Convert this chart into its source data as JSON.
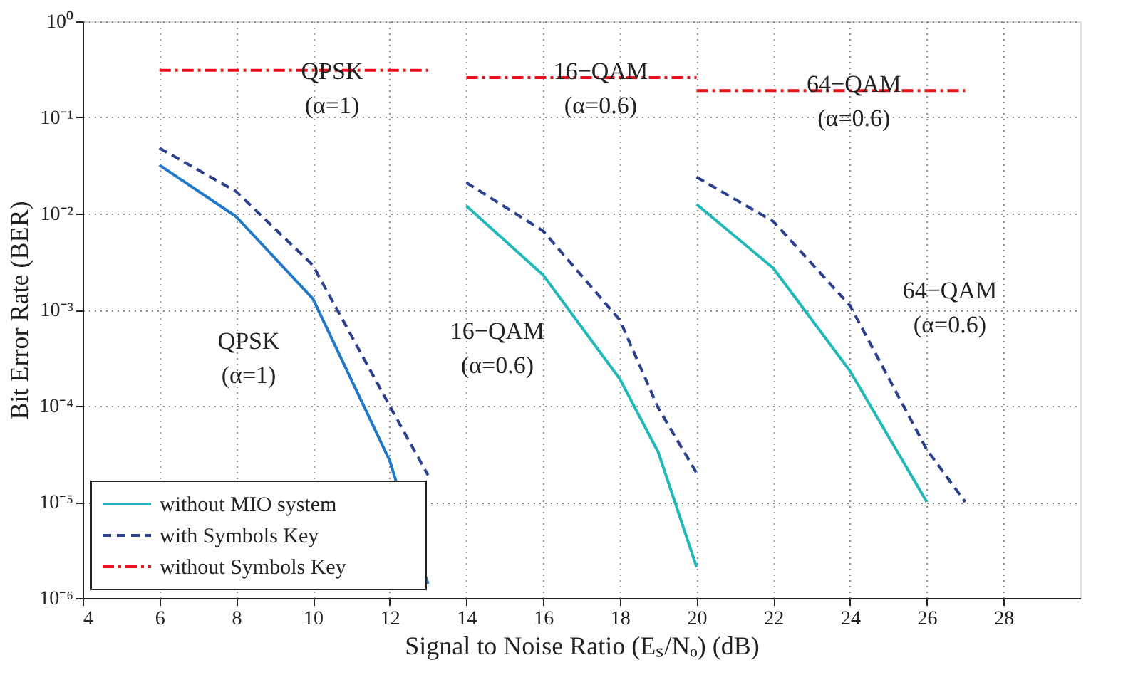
{
  "chart_data": {
    "type": "line",
    "xlabel": "Signal to Noise Ratio  (Eₛ/Nₒ)   (dB)",
    "ylabel": "Bit Error Rate   (BER)",
    "xlim": [
      4,
      30
    ],
    "xticks": [
      4,
      6,
      8,
      10,
      12,
      14,
      16,
      18,
      20,
      22,
      24,
      26,
      28
    ],
    "ylim": [
      1e-06,
      1
    ],
    "yticks": [
      {
        "value": 1,
        "label": "10⁰"
      },
      {
        "value": 0.1,
        "label": "10⁻¹"
      },
      {
        "value": 0.01,
        "label": "10⁻²"
      },
      {
        "value": 0.001,
        "label": "10⁻³"
      },
      {
        "value": 0.0001,
        "label": "10⁻⁴"
      },
      {
        "value": 1e-05,
        "label": "10⁻⁵"
      },
      {
        "value": 1e-06,
        "label": "10⁻⁶"
      }
    ],
    "log": "y",
    "grid": true,
    "legend": "bottom left",
    "marker": "none",
    "series": [
      {
        "color": "#1f78c8",
        "line_style": "solid",
        "x": [
          6,
          8,
          10,
          12,
          13
        ],
        "values": [
          0.032,
          0.0093,
          0.0013,
          2.7e-05,
          1.4e-06
        ]
      },
      {
        "name": "without MIO system",
        "color": "#20b8b8",
        "line_style": "solid",
        "x": [
          14,
          16,
          18,
          19,
          20
        ],
        "values": [
          0.012,
          0.0023,
          0.00019,
          3.3e-05,
          2.1e-06
        ]
      },
      {
        "color": "#20b8b8",
        "line_style": "solid",
        "x": [
          20,
          22,
          24,
          26
        ],
        "values": [
          0.0125,
          0.0027,
          0.00023,
          1e-05
        ]
      },
      {
        "name": "with Symbols Key",
        "color": "#2b3f8f",
        "line_style": "dashed",
        "x": [
          6,
          8,
          10,
          12,
          13
        ],
        "values": [
          0.048,
          0.017,
          0.0029,
          0.0001,
          1.9e-05
        ]
      },
      {
        "color": "#2b3f8f",
        "line_style": "dashed",
        "x": [
          14,
          16,
          18,
          19,
          20
        ],
        "values": [
          0.021,
          0.0066,
          0.00078,
          9.5e-05,
          2e-05
        ]
      },
      {
        "color": "#2b3f8f",
        "line_style": "dashed",
        "x": [
          20,
          22,
          24,
          26,
          27
        ],
        "values": [
          0.024,
          0.0083,
          0.0011,
          3.5e-05,
          1e-05
        ]
      },
      {
        "name": "without Symbols Key",
        "color": "#e8141b",
        "line_style": "dashdot",
        "x": [
          6,
          13
        ],
        "values": [
          0.31,
          0.31
        ]
      },
      {
        "color": "#e8141b",
        "line_style": "dashdot",
        "x": [
          14,
          20
        ],
        "values": [
          0.26,
          0.26
        ]
      },
      {
        "color": "#e8141b",
        "line_style": "dashdot",
        "x": [
          20,
          27
        ],
        "values": [
          0.19,
          0.19
        ]
      }
    ],
    "annotations": [
      {
        "text": "QPSK\n(α=1)",
        "x": 10.5,
        "y": 0.3
      },
      {
        "text": "16−QAM\n(α=0.6)",
        "x": 17.5,
        "y": 0.3
      },
      {
        "text": "64−QAM\n(α=0.6)",
        "x": 24.1,
        "y": 0.22
      },
      {
        "text": "QPSK\n(α=1)",
        "x": 10,
        "y": 0.0013
      },
      "16−QAM\n(α=0.6)",
      {
        "text": "64−QAM\n(α=0.6)",
        "x": 24,
        "y": 0.0011
      }
    ]
  }
}
